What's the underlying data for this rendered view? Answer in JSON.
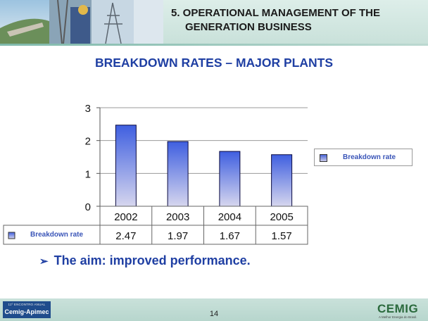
{
  "header": {
    "title_line1": "5. OPERATIONAL MANAGEMENT OF THE",
    "title_line2": "GENERATION BUSINESS"
  },
  "page_title": "BREAKDOWN RATES – MAJOR PLANTS",
  "chart_data": {
    "type": "bar",
    "categories": [
      "2002",
      "2003",
      "2004",
      "2005"
    ],
    "series": [
      {
        "name": "Breakdown rate",
        "values": [
          2.47,
          1.97,
          1.67,
          1.57
        ]
      }
    ],
    "yticks": [
      "0",
      "1",
      "2",
      "3"
    ],
    "ylim": [
      0,
      3
    ],
    "grid": true,
    "legend": "right",
    "data_table": true,
    "bar_color_top": "#3f5fe0",
    "bar_color_bottom": "#d6d6ee"
  },
  "legend": {
    "label": "Breakdown rate"
  },
  "bullet": {
    "text": "The aim: improved performance."
  },
  "footer": {
    "page_number": "14",
    "left_logo_small": "11º ENCONTRO ANUAL",
    "left_logo": "Cemig-Apimec",
    "right_logo": "CEMIG",
    "right_tagline": "A Melhor Energia do Brasil."
  }
}
